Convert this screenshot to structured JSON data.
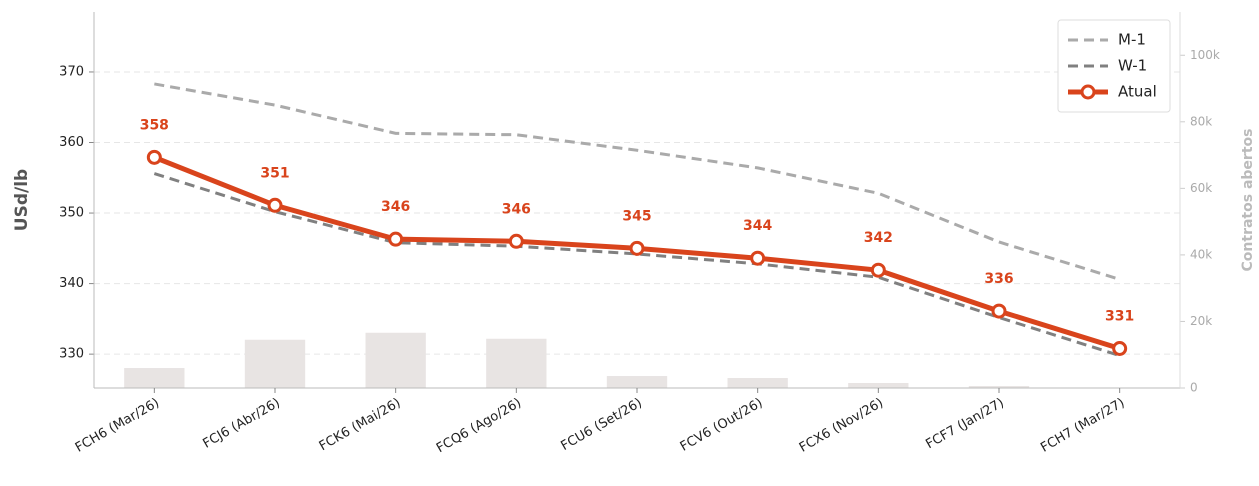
{
  "chart_data": {
    "type": "line",
    "categories": [
      "FCH6 (Mar/26)",
      "FCJ6 (Abr/26)",
      "FCK6 (Mai/26)",
      "FCQ6 (Ago/26)",
      "FCU6 (Set/26)",
      "FCV6 (Out/26)",
      "FCX6 (Nov/26)",
      "FCF7 (Jan/27)",
      "FCH7 (Mar/27)"
    ],
    "series": [
      {
        "name": "M-1",
        "color": "#aaaaaa",
        "style": "dashed",
        "values": [
          368.3,
          365.3,
          361.3,
          361.1,
          358.9,
          356.4,
          352.8,
          345.9,
          340.6
        ]
      },
      {
        "name": "W-1",
        "color": "#808080",
        "style": "dashed",
        "values": [
          355.6,
          350.2,
          345.8,
          345.3,
          344.2,
          342.8,
          340.9,
          335.2,
          329.8
        ]
      },
      {
        "name": "Atual",
        "color": "#d9441c",
        "style": "solid",
        "values": [
          357.9,
          351.1,
          346.3,
          346.0,
          345.0,
          343.6,
          341.9,
          336.1,
          330.8
        ],
        "value_labels": [
          "358",
          "351",
          "346",
          "346",
          "345",
          "344",
          "342",
          "336",
          "331"
        ]
      },
      {
        "name": "Contratos abertos",
        "type": "bar",
        "axis": "y2",
        "color": "#e8e4e3",
        "values": [
          6000,
          14500,
          16600,
          14800,
          3600,
          3000,
          1500,
          600,
          0
        ]
      }
    ],
    "ylabel": "USd/lb",
    "y2label": "Contratos abertos",
    "ylim": [
      325.2,
      378.5
    ],
    "yticks": [
      330,
      340,
      350,
      360,
      370
    ],
    "y2lim": [
      0,
      113000
    ],
    "y2ticks": [
      0,
      {
        "value": 20000,
        "label": "20k"
      },
      {
        "value": 40000,
        "label": "40k"
      },
      {
        "value": 60000,
        "label": "60k"
      },
      {
        "value": 80000,
        "label": "80k"
      },
      {
        "value": 100000,
        "label": "100k"
      }
    ],
    "grid": true,
    "legend": "upper right"
  }
}
